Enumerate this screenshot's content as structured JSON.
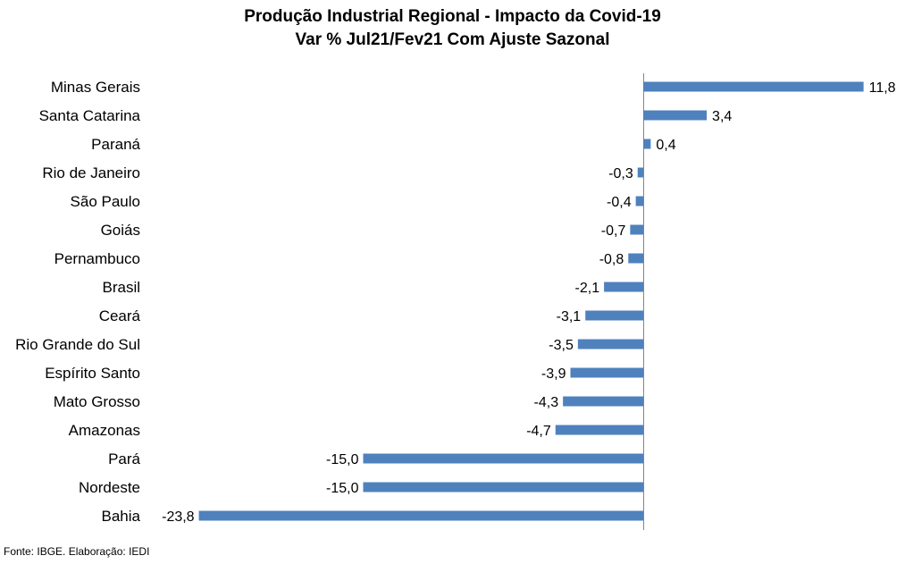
{
  "chart_data": {
    "type": "bar",
    "orientation": "horizontal",
    "title": "Produção Industrial Regional - Impacto da Covid-19",
    "subtitle": "Var % Jul21/Fev21 Com Ajuste Sazonal",
    "categories": [
      "Minas Gerais",
      "Santa Catarina",
      "Paraná",
      "Rio de Janeiro",
      "São Paulo",
      "Goiás",
      "Pernambuco",
      "Brasil",
      "Ceará",
      "Rio Grande do Sul",
      "Espírito Santo",
      "Mato Grosso",
      "Amazonas",
      "Pará",
      "Nordeste",
      "Bahia"
    ],
    "values": [
      11.8,
      3.4,
      0.4,
      -0.3,
      -0.4,
      -0.7,
      -0.8,
      -2.1,
      -3.1,
      -3.5,
      -3.9,
      -4.3,
      -4.7,
      -15.0,
      -15.0,
      -23.8
    ],
    "value_labels": [
      "11,8",
      "3,4",
      "0,4",
      "-0,3",
      "-0,4",
      "-0,7",
      "-0,8",
      "-2,1",
      "-3,1",
      "-3,5",
      "-3,9",
      "-4,3",
      "-4,7",
      "-15,0",
      "-15,0",
      "-23,8"
    ],
    "xlim": [
      -23.8,
      11.8
    ],
    "grid": false,
    "legend": "none",
    "bar_color": "#4f81bd"
  },
  "footer": {
    "source": "Fonte: IBGE. Elaboração: IEDI"
  }
}
